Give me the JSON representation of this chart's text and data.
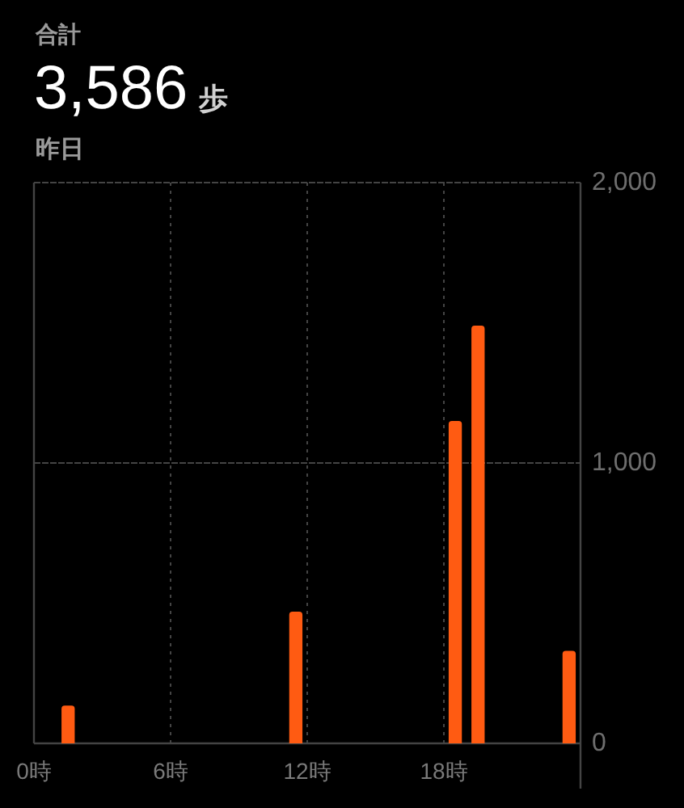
{
  "chart_data": {
    "type": "bar",
    "annotations": [
      "合計"
    ],
    "title": "3,586 歩",
    "subtitle": "昨日",
    "x": [
      1.5,
      11.5,
      18.5,
      19.5,
      23.5
    ],
    "values": [
      135,
      470,
      1150,
      1490,
      330
    ],
    "color": "#ff5b12",
    "xlim": [
      0,
      24
    ],
    "xticks": [
      {
        "value": 0,
        "label": "0時"
      },
      {
        "value": 6,
        "label": "6時"
      },
      {
        "value": 12,
        "label": "12時"
      },
      {
        "value": 18,
        "label": "18時"
      }
    ],
    "ylim": [
      0,
      2000
    ],
    "yticks": [
      0,
      {
        "value": 1000,
        "label": "1,000"
      },
      {
        "value": 2000,
        "label": "2,000"
      }
    ],
    "grid": true
  }
}
